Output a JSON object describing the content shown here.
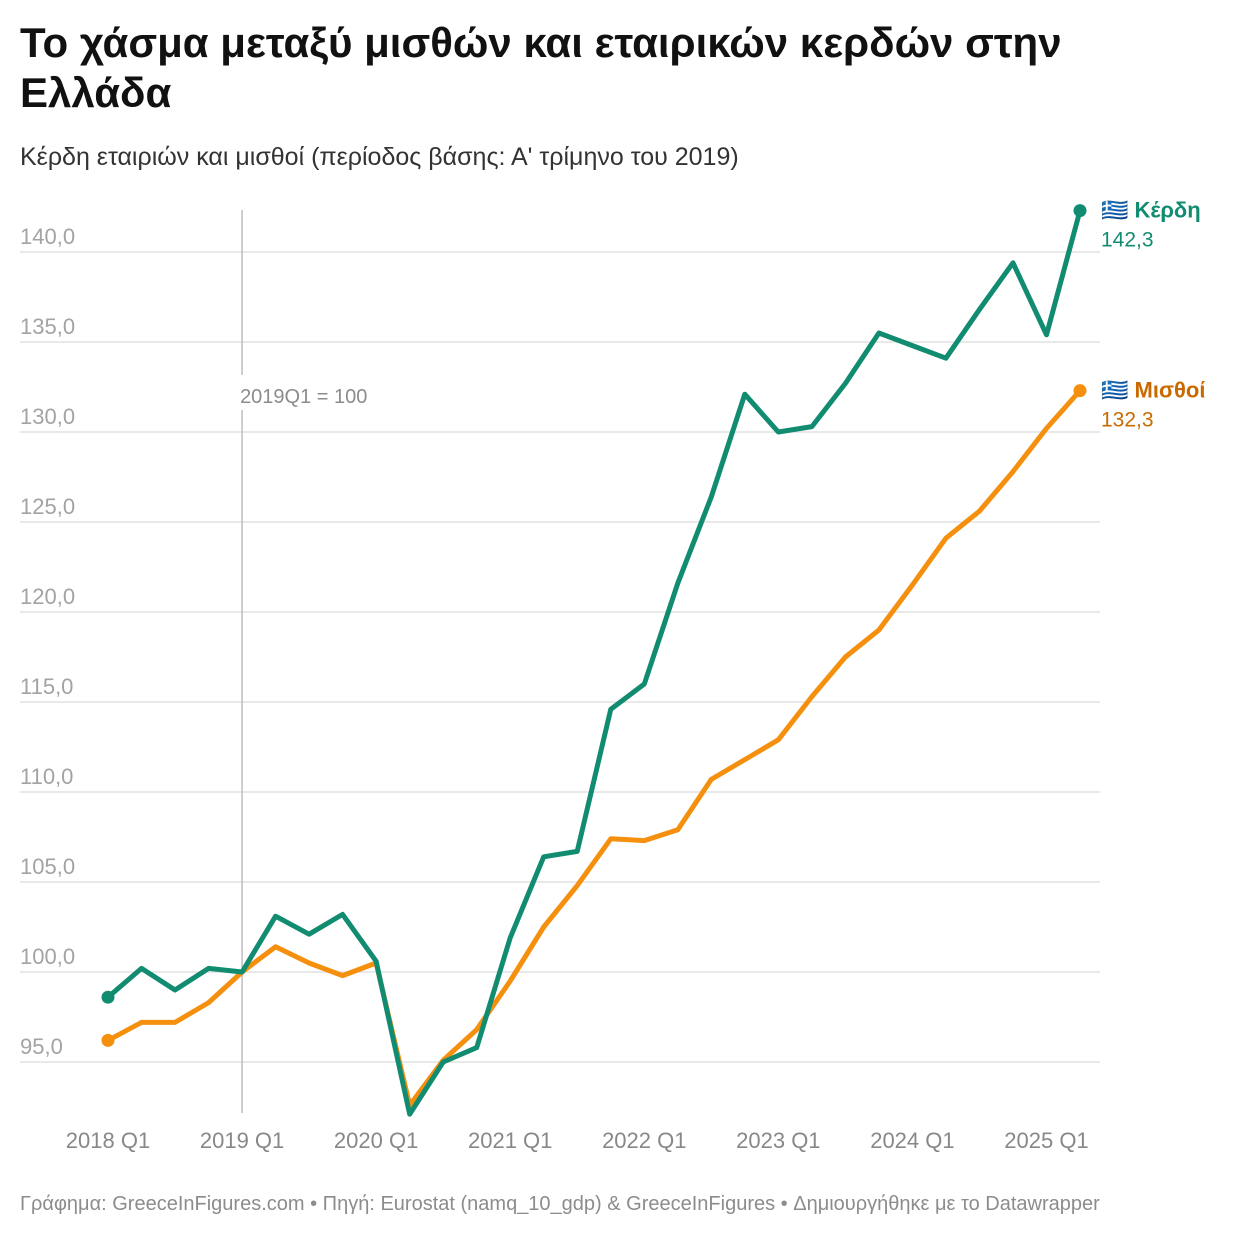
{
  "title": "Το χάσμα μεταξύ μισθών και εταιρικών κερδών στην Ελλάδα",
  "subtitle": "Κέρδη εταιριών και μισθοί (περίοδος βάσης: Α' τρίμηνο του 2019)",
  "footer": "Γράφημα: GreeceInFigures.com • Πηγή: Eurostat (namq_10_gdp) & GreeceInFigures • Δημιουργήθηκε με το Datawrapper",
  "chart_data": {
    "type": "line",
    "x": [
      "2018Q1",
      "2018Q2",
      "2018Q3",
      "2018Q4",
      "2019Q1",
      "2019Q2",
      "2019Q3",
      "2019Q4",
      "2020Q1",
      "2020Q2",
      "2020Q3",
      "2020Q4",
      "2021Q1",
      "2021Q2",
      "2021Q3",
      "2021Q4",
      "2022Q1",
      "2022Q2",
      "2022Q3",
      "2022Q4",
      "2023Q1",
      "2023Q2",
      "2023Q3",
      "2023Q4",
      "2024Q1",
      "2024Q2",
      "2024Q3",
      "2024Q4",
      "2025Q1",
      "2025Q2"
    ],
    "x_ticks": [
      "2018 Q1",
      "2019 Q1",
      "2020 Q1",
      "2021 Q1",
      "2022 Q1",
      "2023 Q1",
      "2024 Q1",
      "2025 Q1"
    ],
    "y_ticks": [
      "95,0",
      "100,0",
      "105,0",
      "110,0",
      "115,0",
      "120,0",
      "125,0",
      "130,0",
      "135,0",
      "140,0"
    ],
    "y_tick_values": [
      95,
      100,
      105,
      110,
      115,
      120,
      125,
      130,
      135,
      140
    ],
    "ylim": [
      91.5,
      142.5
    ],
    "series": [
      {
        "name": "Κέρδη",
        "flag": "🇬🇷",
        "end_label": "142,3",
        "color": "#118c71",
        "values": [
          98.6,
          100.2,
          99.0,
          100.2,
          100.0,
          103.1,
          102.1,
          103.2,
          100.6,
          92.1,
          95.0,
          95.8,
          101.9,
          106.4,
          106.7,
          114.6,
          116.0,
          121.6,
          126.4,
          132.1,
          130.0,
          130.3,
          132.7,
          135.5,
          134.8,
          134.1,
          136.8,
          139.4,
          135.4,
          142.3
        ]
      },
      {
        "name": "Μισθοί",
        "flag": "🇬🇷",
        "end_label": "132,3",
        "color": "#f5900f",
        "label_color": "#c96a00",
        "values": [
          96.2,
          97.2,
          97.2,
          98.3,
          100.0,
          101.4,
          100.5,
          99.8,
          100.5,
          92.6,
          95.1,
          96.8,
          99.5,
          102.5,
          104.8,
          107.4,
          107.3,
          107.9,
          110.7,
          111.8,
          112.9,
          115.3,
          117.5,
          119.0,
          121.5,
          124.1,
          125.6,
          127.8,
          130.2,
          132.3
        ]
      }
    ],
    "annotation": "2019Q1 = 100",
    "annotation_x": "2019Q1",
    "grid": true,
    "legend": "end-of-line labels"
  }
}
